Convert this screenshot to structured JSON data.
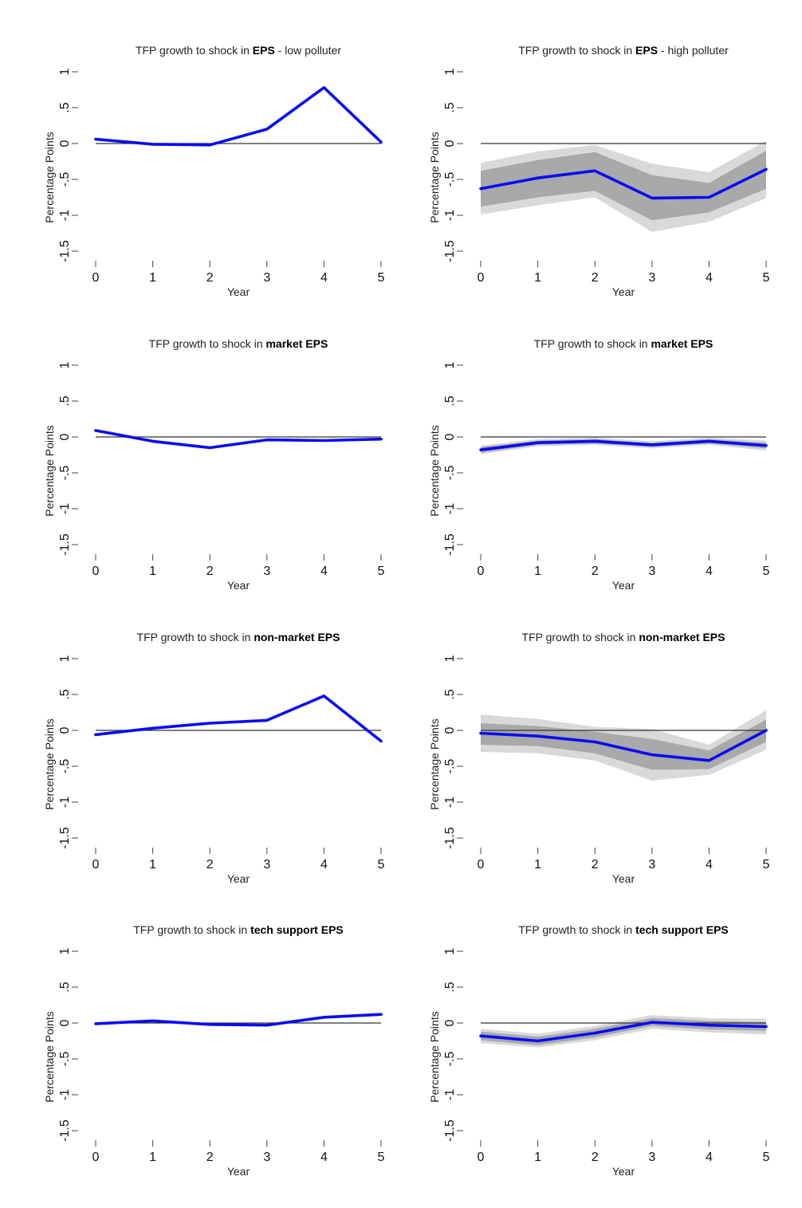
{
  "chart_data": [
    {
      "type": "line",
      "title_prefix": "TFP growth to shock in ",
      "title_bold": "EPS",
      "title_suffix": " - low polluter",
      "xlabel": "Year",
      "ylabel": "Percentage Points",
      "x": [
        0,
        1,
        2,
        3,
        4,
        5
      ],
      "xticks": [
        "0",
        "1",
        "2",
        "3",
        "4",
        "5"
      ],
      "yticks": [
        "1",
        ".5",
        "0",
        "-.5",
        "-1",
        "-1.5"
      ],
      "ylim": [
        -1.5,
        1
      ],
      "series": [
        {
          "values": [
            0.06,
            -0.01,
            -0.02,
            0.2,
            0.78,
            0.02
          ]
        }
      ],
      "bands": []
    },
    {
      "type": "line",
      "title_prefix": "TFP growth to shock in ",
      "title_bold": "EPS",
      "title_suffix": " - high polluter",
      "xlabel": "Year",
      "ylabel": "Percentage Points",
      "x": [
        0,
        1,
        2,
        3,
        4,
        5
      ],
      "xticks": [
        "0",
        "1",
        "2",
        "3",
        "4",
        "5"
      ],
      "yticks": [
        "1",
        ".5",
        "0",
        "-.5",
        "-1",
        "-1.5"
      ],
      "ylim": [
        -1.5,
        1
      ],
      "series": [
        {
          "values": [
            -0.63,
            -0.48,
            -0.38,
            -0.76,
            -0.75,
            -0.36
          ]
        }
      ],
      "bands": [
        {
          "level": "outer",
          "lower": [
            -0.99,
            -0.86,
            -0.75,
            -1.23,
            -1.09,
            -0.76
          ],
          "upper": [
            -0.27,
            -0.11,
            -0.02,
            -0.28,
            -0.4,
            0.04
          ]
        },
        {
          "level": "inner",
          "lower": [
            -0.88,
            -0.75,
            -0.66,
            -1.07,
            -0.96,
            -0.63
          ],
          "upper": [
            -0.38,
            -0.23,
            -0.12,
            -0.44,
            -0.55,
            -0.1
          ]
        }
      ]
    },
    {
      "type": "line",
      "title_prefix": "TFP growth to shock in ",
      "title_bold": "market EPS",
      "title_suffix": "",
      "xlabel": "Year",
      "ylabel": "Percentage Points",
      "x": [
        0,
        1,
        2,
        3,
        4,
        5
      ],
      "xticks": [
        "0",
        "1",
        "2",
        "3",
        "4",
        "5"
      ],
      "yticks": [
        "1",
        ".5",
        "0",
        "-.5",
        "-1",
        "-1.5"
      ],
      "ylim": [
        -1.5,
        1
      ],
      "series": [
        {
          "values": [
            0.09,
            -0.06,
            -0.15,
            -0.04,
            -0.05,
            -0.03
          ]
        }
      ],
      "bands": []
    },
    {
      "type": "line",
      "title_prefix": "TFP growth to shock in ",
      "title_bold": "market EPS",
      "title_suffix": "",
      "xlabel": "Year",
      "ylabel": "Percentage Points",
      "x": [
        0,
        1,
        2,
        3,
        4,
        5
      ],
      "xticks": [
        "0",
        "1",
        "2",
        "3",
        "4",
        "5"
      ],
      "yticks": [
        "1",
        ".5",
        "0",
        "-.5",
        "-1",
        "-1.5"
      ],
      "ylim": [
        -1.5,
        1
      ],
      "series": [
        {
          "values": [
            -0.18,
            -0.08,
            -0.06,
            -0.11,
            -0.06,
            -0.12
          ]
        }
      ],
      "bands": [
        {
          "level": "outer",
          "lower": [
            -0.24,
            -0.13,
            -0.11,
            -0.16,
            -0.11,
            -0.19
          ],
          "upper": [
            -0.12,
            -0.03,
            -0.01,
            -0.06,
            -0.01,
            -0.05
          ]
        },
        {
          "level": "inner",
          "lower": [
            -0.22,
            -0.11,
            -0.09,
            -0.14,
            -0.09,
            -0.16
          ],
          "upper": [
            -0.14,
            -0.05,
            -0.03,
            -0.08,
            -0.03,
            -0.08
          ]
        }
      ]
    },
    {
      "type": "line",
      "title_prefix": "TFP growth to shock in ",
      "title_bold": "non-market EPS",
      "title_suffix": "",
      "xlabel": "Year",
      "ylabel": "Percentage Points",
      "x": [
        0,
        1,
        2,
        3,
        4,
        5
      ],
      "xticks": [
        "0",
        "1",
        "2",
        "3",
        "4",
        "5"
      ],
      "yticks": [
        "1",
        ".5",
        "0",
        "-.5",
        "-1",
        "-1.5"
      ],
      "ylim": [
        -1.5,
        1
      ],
      "series": [
        {
          "values": [
            -0.06,
            0.03,
            0.1,
            0.14,
            0.48,
            -0.15
          ]
        }
      ],
      "bands": []
    },
    {
      "type": "line",
      "title_prefix": "TFP growth to shock in ",
      "title_bold": "non-market EPS",
      "title_suffix": "",
      "xlabel": "Year",
      "ylabel": "Percentage Points",
      "x": [
        0,
        1,
        2,
        3,
        4,
        5
      ],
      "xticks": [
        "0",
        "1",
        "2",
        "3",
        "4",
        "5"
      ],
      "yticks": [
        "1",
        ".5",
        "0",
        "-.5",
        "-1",
        "-1.5"
      ],
      "ylim": [
        -1.5,
        1
      ],
      "series": [
        {
          "values": [
            -0.04,
            -0.08,
            -0.16,
            -0.34,
            -0.42,
            0.0
          ]
        }
      ],
      "bands": [
        {
          "level": "outer",
          "lower": [
            -0.3,
            -0.32,
            -0.42,
            -0.7,
            -0.62,
            -0.27
          ],
          "upper": [
            0.22,
            0.16,
            0.05,
            0.02,
            -0.2,
            0.28
          ]
        },
        {
          "level": "inner",
          "lower": [
            -0.2,
            -0.22,
            -0.32,
            -0.55,
            -0.54,
            -0.16
          ],
          "upper": [
            0.1,
            0.06,
            -0.02,
            -0.12,
            -0.28,
            0.15
          ]
        }
      ]
    },
    {
      "type": "line",
      "title_prefix": "TFP growth to shock in ",
      "title_bold": "tech support EPS",
      "title_suffix": "",
      "xlabel": "Year",
      "ylabel": "Percentage Points",
      "x": [
        0,
        1,
        2,
        3,
        4,
        5
      ],
      "xticks": [
        "0",
        "1",
        "2",
        "3",
        "4",
        "5"
      ],
      "yticks": [
        "1",
        ".5",
        "0",
        "-.5",
        "-1",
        "-1.5"
      ],
      "ylim": [
        -1.5,
        1
      ],
      "series": [
        {
          "values": [
            -0.01,
            0.03,
            -0.02,
            -0.03,
            0.08,
            0.12
          ]
        }
      ],
      "bands": []
    },
    {
      "type": "line",
      "title_prefix": "TFP growth to shock in ",
      "title_bold": "tech support EPS",
      "title_suffix": "",
      "xlabel": "Year",
      "ylabel": "Percentage Points",
      "x": [
        0,
        1,
        2,
        3,
        4,
        5
      ],
      "xticks": [
        "0",
        "1",
        "2",
        "3",
        "4",
        "5"
      ],
      "yticks": [
        "1",
        ".5",
        "0",
        "-.5",
        "-1",
        "-1.5"
      ],
      "ylim": [
        -1.5,
        1
      ],
      "series": [
        {
          "values": [
            -0.18,
            -0.25,
            -0.14,
            0.01,
            -0.03,
            -0.05
          ]
        }
      ],
      "bands": [
        {
          "level": "outer",
          "lower": [
            -0.28,
            -0.34,
            -0.24,
            -0.08,
            -0.13,
            -0.16
          ],
          "upper": [
            -0.08,
            -0.15,
            -0.04,
            0.11,
            0.07,
            0.06
          ]
        },
        {
          "level": "inner",
          "lower": [
            -0.24,
            -0.31,
            -0.2,
            -0.04,
            -0.09,
            -0.11
          ],
          "upper": [
            -0.12,
            -0.19,
            -0.08,
            0.07,
            0.03,
            0.01
          ]
        }
      ]
    }
  ],
  "colors": {
    "line": "#0b0bf2",
    "zero_line": "#333333",
    "band_outer": "#d9d9d9",
    "band_inner": "#a9a9a9",
    "axis": "#444444"
  }
}
